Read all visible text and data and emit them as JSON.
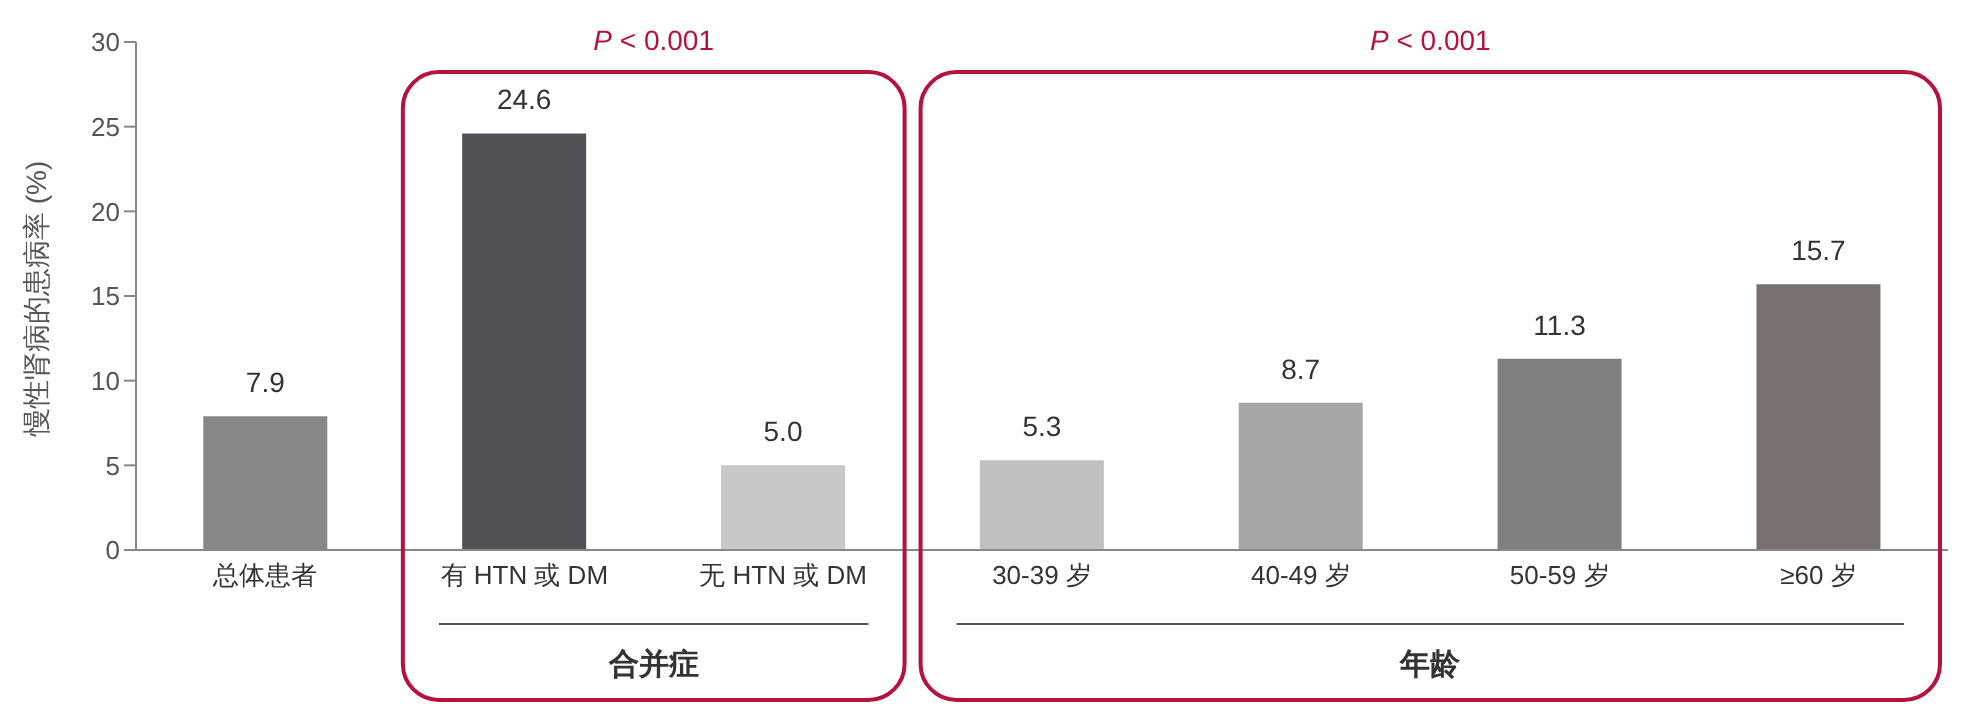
{
  "chart_data": {
    "type": "bar",
    "ylabel": "慢性肾病的患病率 (%)",
    "categories": [
      "总体患者",
      "有 HTN 或 DM",
      "无 HTN 或 DM",
      "30-39 岁",
      "40-49 岁",
      "50-59 岁",
      "≥60 岁"
    ],
    "values": [
      7.9,
      24.6,
      5.0,
      5.3,
      8.7,
      11.3,
      15.7
    ],
    "colors": [
      "#878787",
      "#505055",
      "#c8c8c8",
      "#c0c0c0",
      "#a6a6a6",
      "#808080",
      "#767170"
    ],
    "value_labels": [
      "7.9",
      "24.6",
      "5.0",
      "5.3",
      "8.7",
      "11.3",
      "15.7"
    ],
    "ylim": [
      0,
      30
    ],
    "yticks": [
      0,
      5,
      10,
      15,
      20,
      25,
      30
    ],
    "grid": false,
    "legend": false,
    "annotations": [
      "P <  0.001",
      "合并症",
      "P <  0.001",
      "年龄"
    ]
  }
}
